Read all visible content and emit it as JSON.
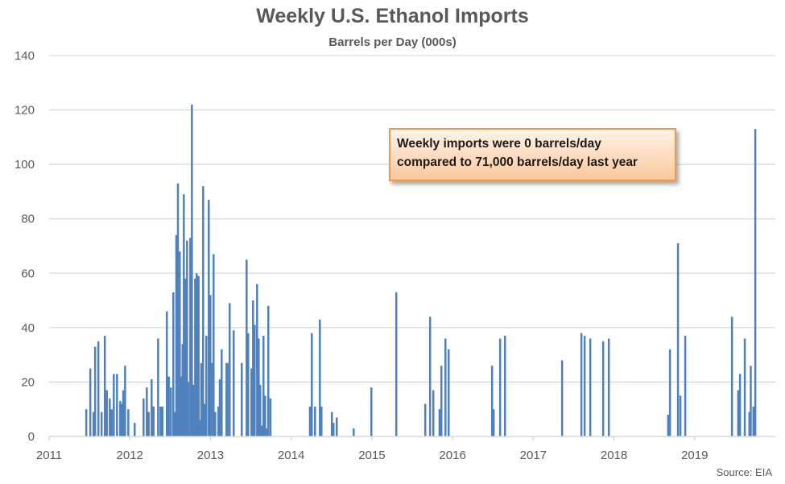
{
  "chart_data": {
    "type": "bar",
    "title": "Weekly U.S. Ethanol Imports",
    "subtitle": "Barrels per Day (000s)",
    "xlabel": "",
    "ylabel": "",
    "ylim": [
      0,
      140
    ],
    "xlim": [
      2011,
      2020
    ],
    "yticks": [
      "0",
      "20",
      "40",
      "60",
      "80",
      "100",
      "120",
      "140"
    ],
    "xticks": [
      "2011",
      "2012",
      "2013",
      "2014",
      "2015",
      "2016",
      "2017",
      "2018",
      "2019"
    ],
    "grid": true,
    "legend": "none",
    "series_color": "#4f81bd",
    "annotation": [
      "Weekly imports were 0 barrels/day",
      "compared to 71,000 barrels/day last year"
    ],
    "source": "Source: EIA",
    "points": [
      [
        2011.46,
        10
      ],
      [
        2011.51,
        25
      ],
      [
        2011.55,
        9
      ],
      [
        2011.57,
        33
      ],
      [
        2011.61,
        35
      ],
      [
        2011.65,
        9
      ],
      [
        2011.69,
        37
      ],
      [
        2011.715,
        17
      ],
      [
        2011.751,
        14
      ],
      [
        2011.775,
        10
      ],
      [
        2011.801,
        23
      ],
      [
        2011.841,
        23
      ],
      [
        2011.881,
        13
      ],
      [
        2011.901,
        12
      ],
      [
        2011.918,
        17
      ],
      [
        2011.941,
        26
      ],
      [
        2011.981,
        10
      ],
      [
        2012.06,
        5
      ],
      [
        2012.17,
        14
      ],
      [
        2012.21,
        18
      ],
      [
        2012.234,
        9
      ],
      [
        2012.27,
        21
      ],
      [
        2012.294,
        11
      ],
      [
        2012.35,
        36
      ],
      [
        2012.38,
        11
      ],
      [
        2012.404,
        11
      ],
      [
        2012.459,
        46
      ],
      [
        2012.483,
        22
      ],
      [
        2012.509,
        18
      ],
      [
        2012.539,
        53
      ],
      [
        2012.559,
        9
      ],
      [
        2012.576,
        74
      ],
      [
        2012.596,
        93
      ],
      [
        2012.619,
        68
      ],
      [
        2012.639,
        22
      ],
      [
        2012.653,
        34
      ],
      [
        2012.669,
        89
      ],
      [
        2012.689,
        58
      ],
      [
        2012.709,
        72
      ],
      [
        2012.723,
        20
      ],
      [
        2012.749,
        73
      ],
      [
        2012.769,
        122
      ],
      [
        2012.786,
        19
      ],
      [
        2012.809,
        58
      ],
      [
        2012.828,
        60
      ],
      [
        2012.852,
        59
      ],
      [
        2012.868,
        6
      ],
      [
        2012.885,
        27
      ],
      [
        2012.908,
        92
      ],
      [
        2012.928,
        12
      ],
      [
        2012.948,
        37
      ],
      [
        2012.978,
        87
      ],
      [
        2012.998,
        52
      ],
      [
        2013.012,
        27
      ],
      [
        2013.038,
        67
      ],
      [
        2013.058,
        9
      ],
      [
        2013.098,
        11
      ],
      [
        2013.115,
        21
      ],
      [
        2013.138,
        32
      ],
      [
        2013.198,
        27
      ],
      [
        2013.211,
        27
      ],
      [
        2013.237,
        49
      ],
      [
        2013.287,
        39
      ],
      [
        2013.387,
        27
      ],
      [
        2013.447,
        65
      ],
      [
        2013.467,
        38
      ],
      [
        2013.507,
        25
      ],
      [
        2013.527,
        50
      ],
      [
        2013.547,
        41
      ],
      [
        2013.577,
        56
      ],
      [
        2013.597,
        36
      ],
      [
        2013.616,
        19
      ],
      [
        2013.636,
        4
      ],
      [
        2013.656,
        37
      ],
      [
        2013.676,
        15
      ],
      [
        2013.696,
        3
      ],
      [
        2013.716,
        48
      ],
      [
        2013.743,
        14
      ],
      [
        2014.232,
        11
      ],
      [
        2014.255,
        38
      ],
      [
        2014.295,
        11
      ],
      [
        2014.355,
        43
      ],
      [
        2014.375,
        11
      ],
      [
        2014.504,
        9
      ],
      [
        2014.524,
        5
      ],
      [
        2014.564,
        7
      ],
      [
        2014.774,
        3
      ],
      [
        2014.993,
        18
      ],
      [
        2015.302,
        53
      ],
      [
        2015.661,
        12
      ],
      [
        2015.721,
        44
      ],
      [
        2015.761,
        17
      ],
      [
        2015.838,
        10
      ],
      [
        2015.861,
        26
      ],
      [
        2015.911,
        36
      ],
      [
        2015.951,
        32
      ],
      [
        2016.489,
        26
      ],
      [
        2016.509,
        10
      ],
      [
        2016.589,
        36
      ],
      [
        2016.649,
        37
      ],
      [
        2017.357,
        28
      ],
      [
        2017.596,
        38
      ],
      [
        2017.636,
        37
      ],
      [
        2017.706,
        36
      ],
      [
        2017.866,
        35
      ],
      [
        2017.936,
        36
      ],
      [
        2018.671,
        8
      ],
      [
        2018.694,
        32
      ],
      [
        2018.793,
        71
      ],
      [
        2018.823,
        15
      ],
      [
        2018.883,
        37
      ],
      [
        2019.462,
        44
      ],
      [
        2019.539,
        17
      ],
      [
        2019.562,
        23
      ],
      [
        2019.621,
        36
      ],
      [
        2019.678,
        9
      ],
      [
        2019.695,
        26
      ],
      [
        2019.728,
        11
      ],
      [
        2019.751,
        113
      ]
    ]
  }
}
